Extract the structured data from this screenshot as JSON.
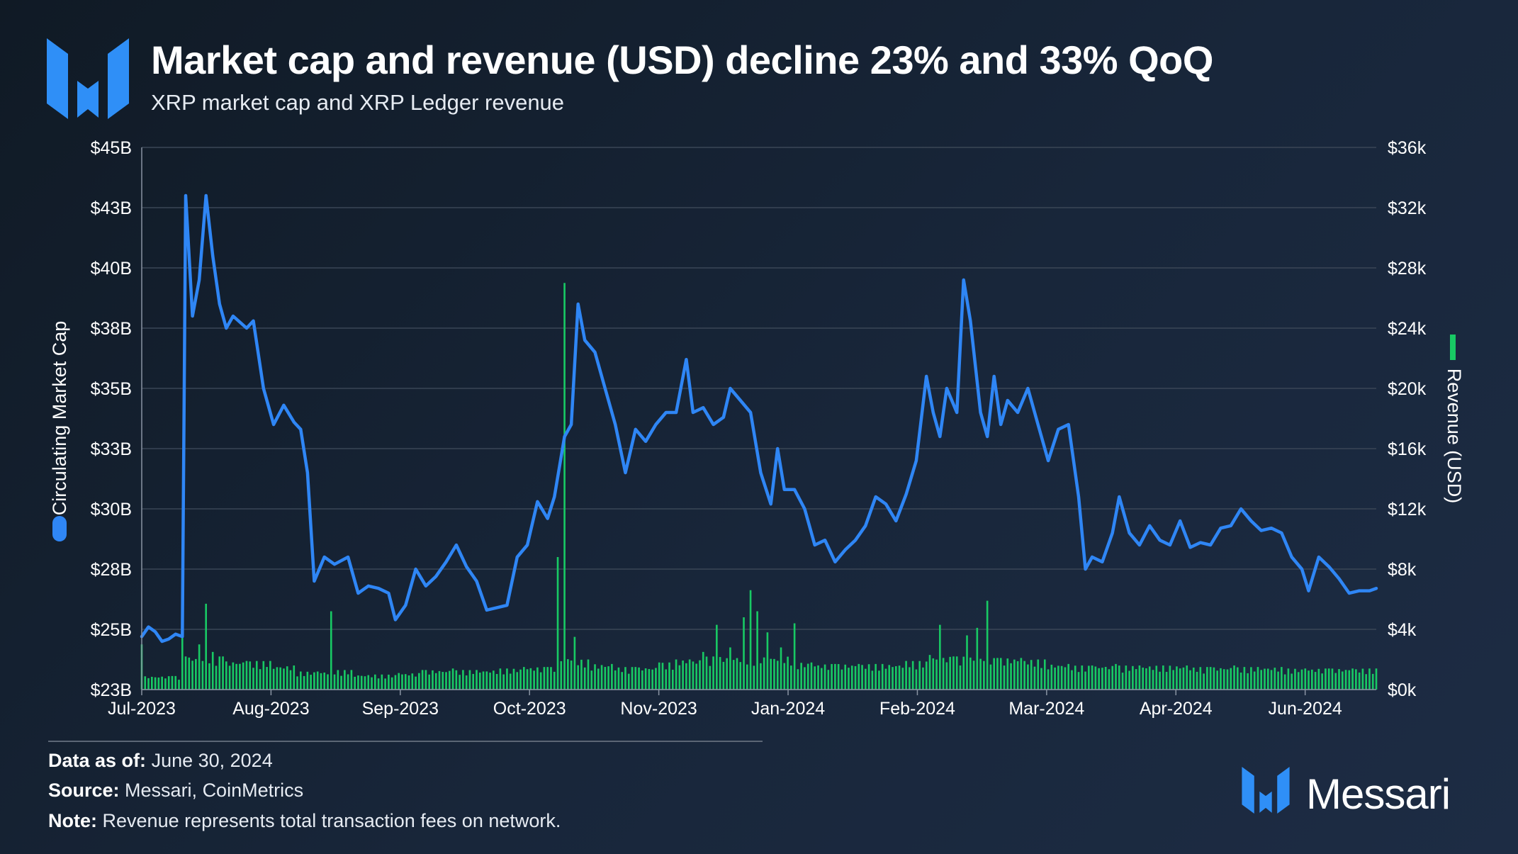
{
  "header": {
    "title": "Market cap and revenue (USD) decline 23% and 33% QoQ",
    "subtitle": "XRP market cap and XRP Ledger revenue"
  },
  "footer": {
    "date_label": "Data as of:",
    "date_value": "June 30, 2024",
    "source_label": "Source:",
    "source_value": "Messari, CoinMetrics",
    "note_label": "Note:",
    "note_value": "Revenue represents total transaction fees on network."
  },
  "brand": {
    "name": "Messari"
  },
  "colors": {
    "market_cap": "#2f86f5",
    "revenue": "#18c964",
    "grid": "#3a4656",
    "text": "#ffffff",
    "logo": "#2f8ff7"
  },
  "icons": {
    "logo": "messari-logo-icon",
    "brand": "messari-logo-icon"
  },
  "chart_data": {
    "type": "line",
    "secondary_type": "bar",
    "title": "",
    "ylabel": "Circulating Market Cap",
    "y2label": "Revenue (USD)",
    "legend": [
      {
        "name": "Circulating Market Cap",
        "color": "#2f86f5",
        "marker": "dot",
        "placement": "left-axis"
      },
      {
        "name": "Revenue (USD)",
        "color": "#18c964",
        "marker": "bar",
        "placement": "right-axis"
      }
    ],
    "xlim": [
      "2023-07-01",
      "2024-06-30"
    ],
    "x_ticks": [
      "Jul-2023",
      "Aug-2023",
      "Sep-2023",
      "Oct-2023",
      "Nov-2023",
      "Jan-2024",
      "Feb-2024",
      "Mar-2024",
      "Apr-2024",
      "Jun-2024"
    ],
    "y_left": {
      "ylim": [
        22.5,
        45
      ],
      "ticks": [
        22.5,
        25,
        27.5,
        30,
        32.5,
        35,
        37.5,
        40,
        42.5,
        45
      ],
      "tick_labels": [
        "$23B",
        "$25B",
        "$28B",
        "$30B",
        "$33B",
        "$35B",
        "$38B",
        "$40B",
        "$43B",
        "$45B"
      ],
      "unit": "USD billions"
    },
    "y_right": {
      "ylim": [
        0,
        36000
      ],
      "ticks": [
        0,
        4000,
        8000,
        12000,
        16000,
        20000,
        24000,
        28000,
        32000,
        36000
      ],
      "tick_labels": [
        "$0k",
        "$4k",
        "$8k",
        "$12k",
        "$16k",
        "$20k",
        "$24k",
        "$28k",
        "$32k",
        "$36k"
      ],
      "unit": "USD"
    },
    "grid": "horizontal",
    "series": [
      {
        "name": "Circulating Market Cap",
        "axis": "left",
        "style": "line",
        "points": [
          [
            "2023-07-01",
            24.7
          ],
          [
            "2023-07-03",
            25.1
          ],
          [
            "2023-07-05",
            24.9
          ],
          [
            "2023-07-07",
            24.5
          ],
          [
            "2023-07-09",
            24.6
          ],
          [
            "2023-07-11",
            24.8
          ],
          [
            "2023-07-13",
            24.7
          ],
          [
            "2023-07-14",
            43.0
          ],
          [
            "2023-07-16",
            38.0
          ],
          [
            "2023-07-18",
            39.5
          ],
          [
            "2023-07-20",
            43.0
          ],
          [
            "2023-07-22",
            40.5
          ],
          [
            "2023-07-24",
            38.5
          ],
          [
            "2023-07-26",
            37.5
          ],
          [
            "2023-07-28",
            38.0
          ],
          [
            "2023-08-01",
            37.5
          ],
          [
            "2023-08-03",
            37.8
          ],
          [
            "2023-08-06",
            35.0
          ],
          [
            "2023-08-09",
            33.5
          ],
          [
            "2023-08-12",
            34.3
          ],
          [
            "2023-08-15",
            33.6
          ],
          [
            "2023-08-17",
            33.3
          ],
          [
            "2023-08-19",
            31.5
          ],
          [
            "2023-08-21",
            27.0
          ],
          [
            "2023-08-24",
            28.0
          ],
          [
            "2023-08-27",
            27.7
          ],
          [
            "2023-08-31",
            28.0
          ],
          [
            "2023-09-03",
            26.5
          ],
          [
            "2023-09-06",
            26.8
          ],
          [
            "2023-09-09",
            26.7
          ],
          [
            "2023-09-12",
            26.5
          ],
          [
            "2023-09-14",
            25.4
          ],
          [
            "2023-09-17",
            26.0
          ],
          [
            "2023-09-20",
            27.5
          ],
          [
            "2023-09-23",
            26.8
          ],
          [
            "2023-09-26",
            27.2
          ],
          [
            "2023-09-29",
            27.8
          ],
          [
            "2023-10-02",
            28.5
          ],
          [
            "2023-10-05",
            27.6
          ],
          [
            "2023-10-08",
            27.0
          ],
          [
            "2023-10-11",
            25.8
          ],
          [
            "2023-10-14",
            25.9
          ],
          [
            "2023-10-17",
            26.0
          ],
          [
            "2023-10-20",
            28.0
          ],
          [
            "2023-10-23",
            28.5
          ],
          [
            "2023-10-26",
            30.3
          ],
          [
            "2023-10-29",
            29.6
          ],
          [
            "2023-10-31",
            30.5
          ],
          [
            "2023-11-03",
            33.0
          ],
          [
            "2023-11-05",
            33.5
          ],
          [
            "2023-11-07",
            38.5
          ],
          [
            "2023-11-09",
            37.0
          ],
          [
            "2023-11-12",
            36.5
          ],
          [
            "2023-11-15",
            35.0
          ],
          [
            "2023-11-18",
            33.5
          ],
          [
            "2023-11-21",
            31.5
          ],
          [
            "2023-11-24",
            33.3
          ],
          [
            "2023-11-27",
            32.8
          ],
          [
            "2023-11-30",
            33.5
          ],
          [
            "2023-12-03",
            34.0
          ],
          [
            "2023-12-06",
            34.0
          ],
          [
            "2023-12-09",
            36.2
          ],
          [
            "2023-12-11",
            34.0
          ],
          [
            "2023-12-14",
            34.2
          ],
          [
            "2023-12-17",
            33.5
          ],
          [
            "2023-12-20",
            33.8
          ],
          [
            "2023-12-22",
            35.0
          ],
          [
            "2023-12-25",
            34.5
          ],
          [
            "2023-12-28",
            34.0
          ],
          [
            "2023-12-31",
            31.5
          ],
          [
            "2024-01-03",
            30.2
          ],
          [
            "2024-01-05",
            32.5
          ],
          [
            "2024-01-07",
            30.8
          ],
          [
            "2024-01-10",
            30.8
          ],
          [
            "2024-01-13",
            30.0
          ],
          [
            "2024-01-16",
            28.5
          ],
          [
            "2024-01-19",
            28.7
          ],
          [
            "2024-01-22",
            27.8
          ],
          [
            "2024-01-25",
            28.3
          ],
          [
            "2024-01-28",
            28.7
          ],
          [
            "2024-01-31",
            29.3
          ],
          [
            "2024-02-03",
            30.5
          ],
          [
            "2024-02-06",
            30.2
          ],
          [
            "2024-02-09",
            29.5
          ],
          [
            "2024-02-12",
            30.6
          ],
          [
            "2024-02-15",
            32.0
          ],
          [
            "2024-02-18",
            35.5
          ],
          [
            "2024-02-20",
            34.0
          ],
          [
            "2024-02-22",
            33.0
          ],
          [
            "2024-02-24",
            35.0
          ],
          [
            "2024-02-27",
            34.0
          ],
          [
            "2024-02-29",
            39.5
          ],
          [
            "2024-03-02",
            37.8
          ],
          [
            "2024-03-05",
            34.0
          ],
          [
            "2024-03-07",
            33.0
          ],
          [
            "2024-03-09",
            35.5
          ],
          [
            "2024-03-11",
            33.5
          ],
          [
            "2024-03-13",
            34.5
          ],
          [
            "2024-03-16",
            34.0
          ],
          [
            "2024-03-19",
            35.0
          ],
          [
            "2024-03-22",
            33.5
          ],
          [
            "2024-03-25",
            32.0
          ],
          [
            "2024-03-28",
            33.3
          ],
          [
            "2024-03-31",
            33.5
          ],
          [
            "2024-04-03",
            30.5
          ],
          [
            "2024-04-05",
            27.5
          ],
          [
            "2024-04-07",
            28.0
          ],
          [
            "2024-04-10",
            27.8
          ],
          [
            "2024-04-13",
            29.0
          ],
          [
            "2024-04-15",
            30.5
          ],
          [
            "2024-04-18",
            29.0
          ],
          [
            "2024-04-21",
            28.5
          ],
          [
            "2024-04-24",
            29.3
          ],
          [
            "2024-04-27",
            28.7
          ],
          [
            "2024-04-30",
            28.5
          ],
          [
            "2024-05-03",
            29.5
          ],
          [
            "2024-05-06",
            28.4
          ],
          [
            "2024-05-09",
            28.6
          ],
          [
            "2024-05-12",
            28.5
          ],
          [
            "2024-05-15",
            29.2
          ],
          [
            "2024-05-18",
            29.3
          ],
          [
            "2024-05-21",
            30.0
          ],
          [
            "2024-05-24",
            29.5
          ],
          [
            "2024-05-27",
            29.1
          ],
          [
            "2024-05-30",
            29.2
          ],
          [
            "2024-06-02",
            29.0
          ],
          [
            "2024-06-05",
            28.0
          ],
          [
            "2024-06-08",
            27.5
          ],
          [
            "2024-06-10",
            26.6
          ],
          [
            "2024-06-13",
            28.0
          ],
          [
            "2024-06-16",
            27.6
          ],
          [
            "2024-06-19",
            27.1
          ],
          [
            "2024-06-22",
            26.5
          ],
          [
            "2024-06-25",
            26.6
          ],
          [
            "2024-06-28",
            26.6
          ],
          [
            "2024-06-30",
            26.7
          ]
        ]
      },
      {
        "name": "Revenue (USD)",
        "axis": "right",
        "style": "bar",
        "points": [
          [
            "2023-07-01",
            3000
          ],
          [
            "2023-07-10",
            900
          ],
          [
            "2023-07-13",
            4000
          ],
          [
            "2023-07-14",
            2200
          ],
          [
            "2023-07-18",
            3000
          ],
          [
            "2023-07-20",
            5700
          ],
          [
            "2023-07-22",
            2500
          ],
          [
            "2023-07-25",
            2200
          ],
          [
            "2023-08-01",
            1900
          ],
          [
            "2023-08-08",
            1900
          ],
          [
            "2023-08-15",
            1600
          ],
          [
            "2023-08-22",
            1200
          ],
          [
            "2023-08-26",
            5200
          ],
          [
            "2023-09-01",
            1300
          ],
          [
            "2023-09-08",
            1000
          ],
          [
            "2023-09-15",
            1100
          ],
          [
            "2023-09-22",
            1300
          ],
          [
            "2023-10-01",
            1400
          ],
          [
            "2023-10-08",
            1300
          ],
          [
            "2023-10-15",
            1400
          ],
          [
            "2023-10-22",
            1500
          ],
          [
            "2023-10-29",
            1500
          ],
          [
            "2023-11-01",
            8800
          ],
          [
            "2023-11-03",
            27000
          ],
          [
            "2023-11-06",
            3500
          ],
          [
            "2023-11-10",
            2000
          ],
          [
            "2023-11-17",
            1700
          ],
          [
            "2023-11-24",
            1500
          ],
          [
            "2023-12-01",
            1800
          ],
          [
            "2023-12-06",
            2000
          ],
          [
            "2023-12-10",
            2000
          ],
          [
            "2023-12-14",
            2500
          ],
          [
            "2023-12-18",
            4300
          ],
          [
            "2023-12-22",
            2800
          ],
          [
            "2023-12-26",
            4800
          ],
          [
            "2023-12-28",
            6600
          ],
          [
            "2023-12-30",
            5200
          ],
          [
            "2024-01-02",
            3800
          ],
          [
            "2024-01-06",
            2800
          ],
          [
            "2024-01-10",
            4400
          ],
          [
            "2024-01-15",
            1800
          ],
          [
            "2024-01-22",
            1700
          ],
          [
            "2024-01-29",
            1700
          ],
          [
            "2024-02-05",
            1700
          ],
          [
            "2024-02-12",
            1900
          ],
          [
            "2024-02-19",
            2300
          ],
          [
            "2024-02-22",
            4300
          ],
          [
            "2024-02-26",
            2200
          ],
          [
            "2024-03-01",
            3600
          ],
          [
            "2024-03-04",
            4100
          ],
          [
            "2024-03-07",
            5900
          ],
          [
            "2024-03-10",
            2100
          ],
          [
            "2024-03-17",
            2100
          ],
          [
            "2024-03-24",
            2000
          ],
          [
            "2024-03-31",
            1700
          ],
          [
            "2024-04-07",
            1600
          ],
          [
            "2024-04-14",
            1700
          ],
          [
            "2024-04-21",
            1600
          ],
          [
            "2024-04-28",
            1600
          ],
          [
            "2024-05-05",
            1600
          ],
          [
            "2024-05-12",
            1500
          ],
          [
            "2024-05-19",
            1600
          ],
          [
            "2024-05-26",
            1500
          ],
          [
            "2024-06-02",
            1500
          ],
          [
            "2024-06-09",
            1400
          ],
          [
            "2024-06-16",
            1400
          ],
          [
            "2024-06-23",
            1400
          ],
          [
            "2024-06-30",
            1400
          ]
        ]
      }
    ]
  }
}
